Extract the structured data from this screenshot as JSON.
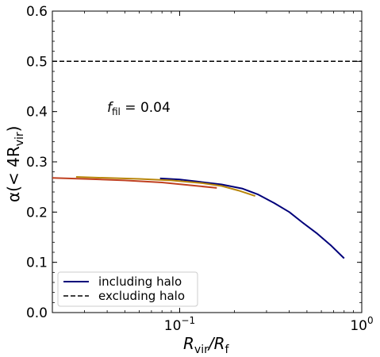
{
  "chart_data": {
    "type": "line",
    "xscale": "log",
    "xlim": [
      0.02,
      1.0
    ],
    "ylim": [
      0.0,
      0.6
    ],
    "xlabel_main": "R",
    "xlabel_sub1": "vir",
    "xlabel_mid": "/R",
    "xlabel_sub2": "f",
    "ylabel_main": "α(< 4R",
    "ylabel_sub": "vir",
    "ylabel_close": ")",
    "x_ticks": [
      {
        "value": 0.1,
        "base": "10",
        "exp": "−1"
      },
      {
        "value": 1.0,
        "base": "10",
        "exp": "0"
      }
    ],
    "y_ticks": [
      {
        "value": 0.0,
        "label": "0.0"
      },
      {
        "value": 0.1,
        "label": "0.1"
      },
      {
        "value": 0.2,
        "label": "0.2"
      },
      {
        "value": 0.3,
        "label": "0.3"
      },
      {
        "value": 0.4,
        "label": "0.4"
      },
      {
        "value": 0.5,
        "label": "0.5"
      },
      {
        "value": 0.6,
        "label": "0.6"
      }
    ],
    "annotation": {
      "main": "f",
      "sub": "fil",
      "rest": " = 0.04"
    },
    "series": [
      {
        "name": "including halo",
        "color": "#00007a",
        "style": "solid",
        "x": [
          0.078,
          0.1,
          0.13,
          0.17,
          0.22,
          0.27,
          0.33,
          0.4,
          0.47,
          0.57,
          0.68,
          0.8
        ],
        "y": [
          0.267,
          0.265,
          0.26,
          0.255,
          0.247,
          0.235,
          0.218,
          0.2,
          0.18,
          0.157,
          0.133,
          0.108
        ]
      },
      {
        "color": "#b8860b",
        "style": "solid",
        "x": [
          0.027,
          0.04,
          0.06,
          0.09,
          0.13,
          0.17,
          0.21,
          0.26
        ],
        "y": [
          0.27,
          0.268,
          0.266,
          0.263,
          0.258,
          0.252,
          0.243,
          0.232
        ]
      },
      {
        "color": "#c04020",
        "style": "solid",
        "x": [
          0.02,
          0.03,
          0.05,
          0.08,
          0.11,
          0.16
        ],
        "y": [
          0.268,
          0.266,
          0.263,
          0.259,
          0.254,
          0.248
        ]
      },
      {
        "name": "excluding halo",
        "color": "#000000",
        "style": "dashed",
        "x": [
          0.02,
          1.0
        ],
        "y": [
          0.5,
          0.5
        ]
      }
    ],
    "legend": {
      "placement": "lower-left",
      "entries": [
        {
          "label": "including halo",
          "color": "#00007a",
          "style": "solid"
        },
        {
          "label": "excluding halo",
          "color": "#000000",
          "style": "dashed"
        }
      ]
    }
  }
}
